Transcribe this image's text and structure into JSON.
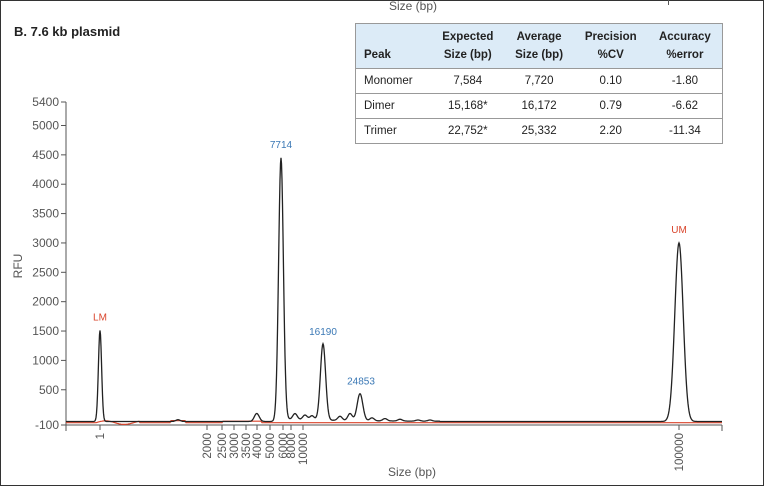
{
  "top_caption": "Size (bp)",
  "panel_title": "B. 7.6 kb plasmid",
  "table": {
    "headers": [
      [
        "Peak"
      ],
      [
        "Expected",
        "Size (bp)"
      ],
      [
        "Average",
        "Size (bp)"
      ],
      [
        "Precision",
        "%CV"
      ],
      [
        "Accuracy",
        "%error"
      ]
    ],
    "rows": [
      [
        "Monomer",
        "7,584",
        "7,720",
        "0.10",
        "-1.80"
      ],
      [
        "Dimer",
        "15,168*",
        "16,172",
        "0.79",
        "-6.62"
      ],
      [
        "Trimer",
        "22,752*",
        "25,332",
        "2.20",
        "-11.34"
      ]
    ]
  },
  "chart_data": {
    "type": "line",
    "xlabel": "Size (bp)",
    "ylabel": "RFU",
    "ylim": [
      -100,
      5400
    ],
    "y_ticks": [
      "5400",
      "5000",
      "4500",
      "4000",
      "3500",
      "3000",
      "2500",
      "2000",
      "1500",
      "1000",
      "500",
      "-100"
    ],
    "x_ticks": [
      "1",
      "2000",
      "2500",
      "3000",
      "3500",
      "4000",
      "5000",
      "6000",
      "8000",
      "10000",
      "100000"
    ],
    "x_scale": "nonlinear (electropherogram migration)",
    "grid": false,
    "series": [
      {
        "color": "#222222",
        "peaks": [
          {
            "label": "LM",
            "size": 1,
            "rfu": 1510
          },
          {
            "label": "7714",
            "size": 7714,
            "rfu": 4450
          },
          {
            "label": "16190",
            "size": 16190,
            "rfu": 1260
          },
          {
            "label": "24853",
            "size": 24853,
            "rfu": 420
          },
          {
            "label": "UM",
            "size": 100000,
            "rfu": 3000
          }
        ]
      },
      {
        "color": "#d9442b",
        "note": ""
      }
    ],
    "peak_label_colors": {
      "marker": "#d9442b",
      "sample": "#3a78b5"
    }
  }
}
